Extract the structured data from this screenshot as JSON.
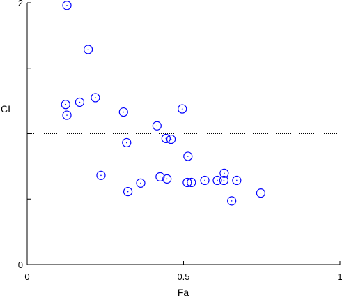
{
  "chart_data": {
    "type": "scatter",
    "xlabel": "Fa",
    "ylabel": "CI",
    "xlim": [
      0,
      1
    ],
    "ylim": [
      0,
      2
    ],
    "x_ticks": [
      "0",
      "0.5",
      "1"
    ],
    "y_ticks": [
      "0",
      "2"
    ],
    "reference_line": {
      "y": 1.0,
      "style": "dotted"
    },
    "marker": "open-circle",
    "colors": {
      "marker": "#0000ff",
      "axis": "#000000",
      "reference_line": "#000000"
    },
    "points": [
      {
        "x": 0.127,
        "y": 1.98
      },
      {
        "x": 0.195,
        "y": 1.643
      },
      {
        "x": 0.218,
        "y": 1.275
      },
      {
        "x": 0.168,
        "y": 1.24
      },
      {
        "x": 0.123,
        "y": 1.223
      },
      {
        "x": 0.127,
        "y": 1.141
      },
      {
        "x": 0.308,
        "y": 1.165
      },
      {
        "x": 0.496,
        "y": 1.189
      },
      {
        "x": 0.415,
        "y": 1.06
      },
      {
        "x": 0.444,
        "y": 0.963
      },
      {
        "x": 0.46,
        "y": 0.957
      },
      {
        "x": 0.318,
        "y": 0.931
      },
      {
        "x": 0.514,
        "y": 0.827
      },
      {
        "x": 0.236,
        "y": 0.681
      },
      {
        "x": 0.425,
        "y": 0.67
      },
      {
        "x": 0.447,
        "y": 0.654
      },
      {
        "x": 0.363,
        "y": 0.622
      },
      {
        "x": 0.512,
        "y": 0.627
      },
      {
        "x": 0.525,
        "y": 0.627
      },
      {
        "x": 0.568,
        "y": 0.643
      },
      {
        "x": 0.608,
        "y": 0.643
      },
      {
        "x": 0.629,
        "y": 0.643
      },
      {
        "x": 0.63,
        "y": 0.697
      },
      {
        "x": 0.67,
        "y": 0.643
      },
      {
        "x": 0.322,
        "y": 0.557
      },
      {
        "x": 0.747,
        "y": 0.546
      },
      {
        "x": 0.654,
        "y": 0.486
      }
    ]
  }
}
